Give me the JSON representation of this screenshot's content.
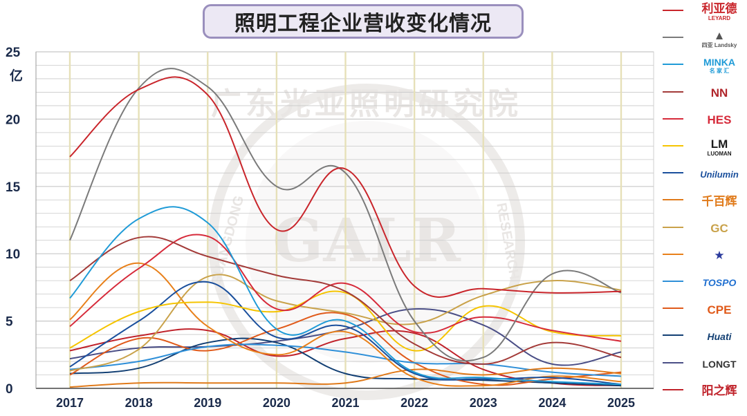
{
  "title": "照明工程企业营收变化情况",
  "watermark": {
    "arc_text": "广东光亚照明研究院",
    "center_text": "GALR",
    "left_text": "GUANGDONG",
    "right_text": "RESEARCH"
  },
  "chart_data": {
    "type": "line",
    "title": "照明工程企业营收变化情况",
    "ylabel": "亿",
    "xlabel": "",
    "x": [
      "2017",
      "2018",
      "2019",
      "2020",
      "2021",
      "2022",
      "2023",
      "2024",
      "2025"
    ],
    "y_ticks": [
      "0",
      "5",
      "10",
      "15",
      "20",
      "25"
    ],
    "ylim": [
      0,
      25
    ],
    "grid": true,
    "legend_position": "right",
    "series": [
      {
        "logo": "利亚德",
        "color": "#c9252b",
        "values": [
          17.2,
          22.2,
          21.8,
          11.8,
          16.3,
          7.6,
          7.4,
          7.1,
          7.2
        ]
      },
      {
        "logo": "四亚 Landsky",
        "color": "#7a7a7a",
        "values": [
          11.0,
          22.3,
          22.4,
          15.0,
          16.0,
          5.0,
          2.3,
          8.5,
          7.1
        ]
      },
      {
        "logo": "MINKA 名家汇",
        "color": "#1f9bd7",
        "values": [
          6.7,
          12.6,
          12.3,
          4.4,
          5.0,
          1.2,
          0.8,
          0.5,
          0.3
        ]
      },
      {
        "logo": "NN",
        "color": "#a33a38",
        "values": [
          8.0,
          11.2,
          9.8,
          8.4,
          7.2,
          3.3,
          1.8,
          3.4,
          2.3
        ]
      },
      {
        "logo": "HES",
        "color": "#d62a3a",
        "values": [
          4.6,
          8.9,
          11.3,
          5.9,
          7.8,
          4.2,
          5.3,
          4.3,
          3.5
        ]
      },
      {
        "logo": "LUOMAN",
        "color": "#f5c400",
        "values": [
          3.0,
          5.7,
          6.4,
          5.7,
          7.1,
          2.8,
          6.1,
          4.2,
          3.9
        ]
      },
      {
        "logo": "Unilumin",
        "color": "#1a4f9c",
        "values": [
          1.6,
          5.0,
          7.9,
          3.8,
          4.6,
          1.1,
          0.7,
          0.8,
          0.3
        ]
      },
      {
        "logo": "千百辉",
        "color": "#e07a1a",
        "values": [
          0.1,
          0.4,
          0.4,
          0.4,
          0.4,
          1.4,
          1.0,
          1.5,
          1.1
        ]
      },
      {
        "logo": "GC",
        "color": "#c9a24a",
        "values": [
          1.3,
          2.9,
          8.3,
          6.5,
          5.6,
          4.8,
          6.9,
          8.0,
          7.3
        ]
      },
      {
        "logo": "星形标志",
        "color": "#e8801a",
        "values": [
          5.1,
          9.3,
          4.6,
          2.5,
          4.2,
          0.8,
          0.2,
          0.9,
          0.5
        ]
      },
      {
        "logo": "TOSPO",
        "color": "#2e8fd8",
        "values": [
          1.4,
          2.0,
          3.1,
          3.2,
          2.7,
          1.9,
          1.8,
          1.2,
          0.9
        ]
      },
      {
        "logo": "CPE",
        "color": "#e05a1a",
        "values": [
          1.0,
          3.7,
          2.8,
          4.4,
          5.5,
          1.9,
          0.3,
          0.7,
          1.2
        ]
      },
      {
        "logo": "Huati",
        "color": "#123f73",
        "values": [
          1.1,
          1.5,
          3.4,
          3.4,
          1.1,
          0.7,
          0.6,
          0.4,
          0.2
        ]
      },
      {
        "logo": "LONGT",
        "color": "#4a4e86",
        "values": [
          2.2,
          3.0,
          3.1,
          3.5,
          4.4,
          5.9,
          4.7,
          1.8,
          2.7
        ]
      },
      {
        "logo": "阳之辉",
        "color": "#c0232b",
        "values": [
          2.8,
          3.9,
          4.3,
          2.4,
          3.7,
          4.1,
          1.4,
          0.4,
          0.2
        ]
      }
    ]
  },
  "legend_logos": [
    {
      "text": "利亚德",
      "sub": "LEYARD",
      "color": "#c9252b"
    },
    {
      "text": "▲",
      "sub": "四亚 Landsky",
      "color": "#555555"
    },
    {
      "text": "MINKA",
      "sub": "名 家 汇",
      "color": "#1f9bd7"
    },
    {
      "text": "NN",
      "sub": "",
      "color": "#b0252b"
    },
    {
      "text": "HES",
      "sub": "",
      "color": "#d62a3a"
    },
    {
      "text": "LM",
      "sub": "LUOMAN",
      "color": "#1a1a1a"
    },
    {
      "text": "Unilumin",
      "sub": "",
      "color": "#1a4f9c"
    },
    {
      "text": "千百辉",
      "sub": "",
      "color": "#e07a1a"
    },
    {
      "text": "GC",
      "sub": "",
      "color": "#c9a24a"
    },
    {
      "text": "★",
      "sub": "",
      "color": "#2a3a9c"
    },
    {
      "text": "TOSPO",
      "sub": "",
      "color": "#1f6fd0"
    },
    {
      "text": "CPE",
      "sub": "",
      "color": "#e05a1a"
    },
    {
      "text": "Huati",
      "sub": "",
      "color": "#123f73"
    },
    {
      "text": "LONGT",
      "sub": "",
      "color": "#333333"
    },
    {
      "text": "阳之辉",
      "sub": "",
      "color": "#c0232b"
    }
  ]
}
